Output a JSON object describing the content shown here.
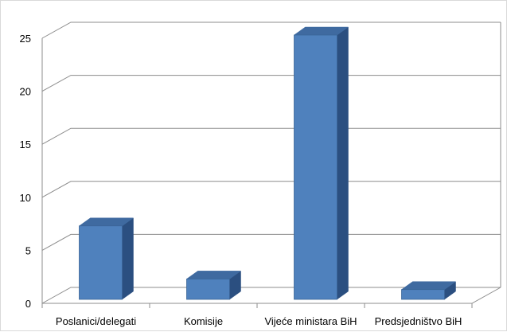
{
  "chart_data": {
    "type": "bar",
    "style": "3d-column",
    "categories": [
      "Poslanici/delegati",
      "Komisije",
      "Vijeće ministara BiH",
      "Predsjedništvo BiH"
    ],
    "values": [
      7,
      2,
      25,
      1
    ],
    "y_ticks": [
      0,
      5,
      10,
      15,
      20,
      25
    ],
    "ylim": [
      0,
      25
    ],
    "grid": true,
    "legend": "none",
    "colors": {
      "bar_front": "#4f81bd",
      "bar_top": "#3f6aa0",
      "bar_side": "#2b4f80",
      "bar_edge": "#3a6596",
      "grid": "#8c8c8c"
    }
  }
}
